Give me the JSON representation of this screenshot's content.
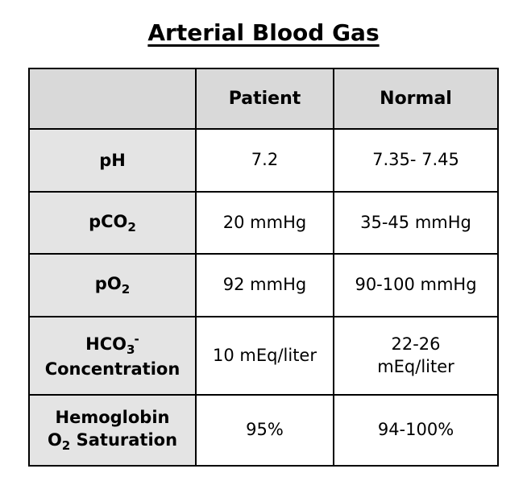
{
  "title": "Arterial Blood Gas",
  "colors": {
    "header_bg": "#d9d9d9",
    "label_bg": "#e4e4e4",
    "border": "#000000",
    "text": "#000000"
  },
  "table": {
    "columns": [
      "",
      "Patient",
      "Normal"
    ],
    "rows": [
      {
        "label_text": "pH",
        "label_html": "pH",
        "patient": "7.2",
        "normal": "7.35- 7.45"
      },
      {
        "label_text": "pCO2",
        "label_html": "pCO<sub>2</sub>",
        "patient": "20 mmHg",
        "normal": "35-45 mmHg"
      },
      {
        "label_text": "pO2",
        "label_html": "pO<sub>2</sub>",
        "patient": "92 mmHg",
        "normal": "90-100 mmHg"
      },
      {
        "label_text": "HCO3- Concentration",
        "label_html": "HCO<sub>3</sub><sup>-</sup><br>Concentration",
        "patient": "10 mEq/liter",
        "normal": "22-26\nmEq/liter"
      },
      {
        "label_text": "Hemoglobin O2 Saturation",
        "label_html": "Hemoglobin<br>O<sub>2</sub> Saturation",
        "patient": "95%",
        "normal": "94-100%"
      }
    ]
  }
}
